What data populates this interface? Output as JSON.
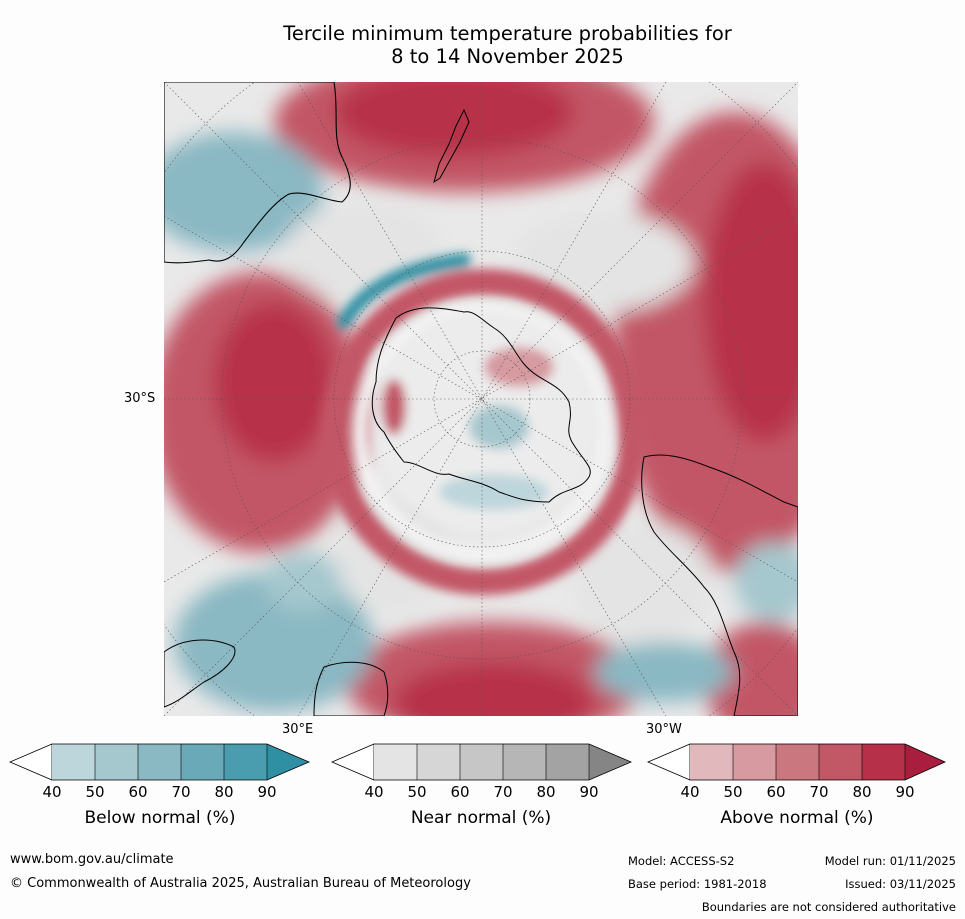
{
  "title": {
    "line1": "Tercile minimum temperature probabilities for",
    "line2": "8 to 14 November 2025"
  },
  "map": {
    "projection": "south-polar-stereographic",
    "graticule_labels": {
      "lat": "30°S",
      "lon_east": "30°E",
      "lon_west": "30°W"
    },
    "colors": {
      "below": [
        "#bdd6dc",
        "#a5c7ce",
        "#8ab8c3",
        "#6aa9b7",
        "#4a9daf",
        "#2f8fa3"
      ],
      "near": [
        "#e4e4e4",
        "#d6d6d6",
        "#c6c6c6",
        "#b6b6b6",
        "#a3a3a3",
        "#858585"
      ],
      "above": [
        "#e1b9bd",
        "#d69aa0",
        "#cb7780",
        "#c25766",
        "#b7304a",
        "#a81e3c"
      ],
      "land_outline": "#000000"
    }
  },
  "legend": [
    {
      "title": "Below normal (%)",
      "ticks": [
        "40",
        "50",
        "60",
        "70",
        "80",
        "90"
      ]
    },
    {
      "title": "Near normal (%)",
      "ticks": [
        "40",
        "50",
        "60",
        "70",
        "80",
        "90"
      ]
    },
    {
      "title": "Above normal (%)",
      "ticks": [
        "40",
        "50",
        "60",
        "70",
        "80",
        "90"
      ]
    }
  ],
  "footer": {
    "url": "www.bom.gov.au/climate",
    "copyright": "© Commonwealth of Australia 2025, Australian Bureau of Meteorology",
    "model": "Model: ACCESS-S2",
    "base_period": "Base period: 1981-2018",
    "model_run": "Model run: 01/11/2025",
    "issued": "Issued: 03/11/2025",
    "disclaimer": "Boundaries are not considered authoritative"
  }
}
